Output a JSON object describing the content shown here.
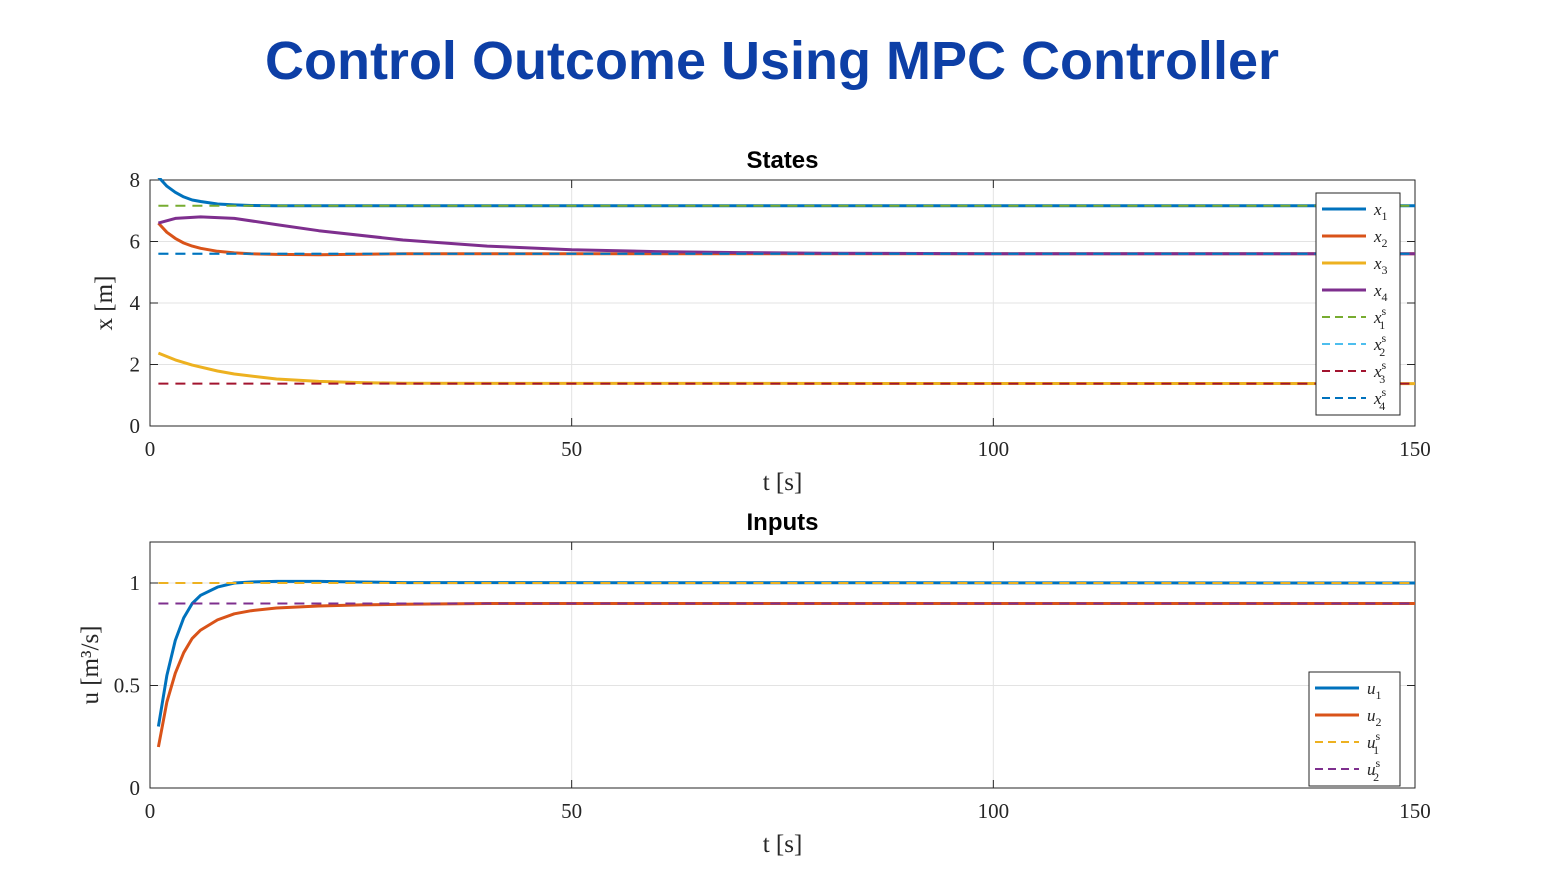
{
  "page": {
    "title": "Control Outcome Using MPC Controller"
  },
  "chart_data": [
    {
      "type": "line",
      "title": "States",
      "xlabel": "t [s]",
      "ylabel": "x [m]",
      "xlim": [
        0,
        150
      ],
      "ylim": [
        0,
        8
      ],
      "xticks": [
        "0",
        "50",
        "100",
        "150"
      ],
      "yticks": [
        "0",
        "2",
        "4",
        "6",
        "8"
      ],
      "grid": true,
      "legend_position": "top-right",
      "series": [
        {
          "name": "x",
          "sub": "1",
          "sup": "",
          "color": "#0072bd",
          "dash": false,
          "x": [
            1,
            2,
            3,
            4,
            5,
            6,
            8,
            10,
            12,
            15,
            20,
            150
          ],
          "values": [
            8.1,
            7.8,
            7.6,
            7.45,
            7.35,
            7.3,
            7.22,
            7.19,
            7.17,
            7.16,
            7.16,
            7.16
          ]
        },
        {
          "name": "x",
          "sub": "2",
          "sup": "",
          "color": "#d95319",
          "dash": false,
          "x": [
            1,
            2,
            3,
            4,
            5,
            6,
            8,
            10,
            12,
            15,
            20,
            30,
            150
          ],
          "values": [
            6.6,
            6.3,
            6.1,
            5.95,
            5.85,
            5.78,
            5.68,
            5.63,
            5.6,
            5.58,
            5.57,
            5.6,
            5.6
          ]
        },
        {
          "name": "x",
          "sub": "3",
          "sup": "",
          "color": "#edb120",
          "dash": false,
          "x": [
            1,
            3,
            5,
            8,
            10,
            15,
            20,
            25,
            30,
            150
          ],
          "values": [
            2.37,
            2.15,
            1.98,
            1.79,
            1.69,
            1.53,
            1.45,
            1.41,
            1.39,
            1.38
          ]
        },
        {
          "name": "x",
          "sub": "4",
          "sup": "",
          "color": "#7e2f8e",
          "dash": false,
          "x": [
            1,
            3,
            6,
            10,
            15,
            20,
            30,
            40,
            50,
            60,
            70,
            80,
            100,
            150
          ],
          "values": [
            6.6,
            6.75,
            6.8,
            6.75,
            6.55,
            6.35,
            6.05,
            5.85,
            5.73,
            5.67,
            5.64,
            5.62,
            5.6,
            5.6
          ]
        },
        {
          "name": "x",
          "sub": "1",
          "sup": "s",
          "color": "#77ac30",
          "dash": true,
          "x": [
            1,
            150
          ],
          "values": [
            7.16,
            7.16
          ]
        },
        {
          "name": "x",
          "sub": "2",
          "sup": "s",
          "color": "#4dbeee",
          "dash": true,
          "x": [
            1,
            150
          ],
          "values": [
            5.6,
            5.6
          ]
        },
        {
          "name": "x",
          "sub": "3",
          "sup": "s",
          "color": "#a2142f",
          "dash": true,
          "x": [
            1,
            150
          ],
          "values": [
            1.38,
            1.38
          ]
        },
        {
          "name": "x",
          "sub": "4",
          "sup": "s",
          "color": "#0072bd",
          "dash": true,
          "x": [
            1,
            150
          ],
          "values": [
            5.6,
            5.6
          ]
        }
      ]
    },
    {
      "type": "line",
      "title": "Inputs",
      "xlabel": "t [s]",
      "ylabel": "u [m³/s]",
      "xlim": [
        0,
        150
      ],
      "ylim": [
        0,
        1.2
      ],
      "xticks": [
        "0",
        "50",
        "100",
        "150"
      ],
      "yticks": [
        "0",
        "0.5",
        "1"
      ],
      "grid": true,
      "legend_position": "bottom-right",
      "series": [
        {
          "name": "u",
          "sub": "1",
          "sup": "",
          "color": "#0072bd",
          "dash": false,
          "x": [
            1,
            2,
            3,
            4,
            5,
            6,
            8,
            10,
            12,
            15,
            20,
            25,
            30,
            150
          ],
          "values": [
            0.3,
            0.55,
            0.72,
            0.83,
            0.9,
            0.94,
            0.98,
            1.0,
            1.005,
            1.008,
            1.008,
            1.005,
            1.002,
            1.0
          ]
        },
        {
          "name": "u",
          "sub": "2",
          "sup": "",
          "color": "#d95319",
          "dash": false,
          "x": [
            1,
            2,
            3,
            4,
            5,
            6,
            8,
            10,
            12,
            15,
            20,
            25,
            30,
            40,
            150
          ],
          "values": [
            0.2,
            0.42,
            0.56,
            0.66,
            0.73,
            0.77,
            0.82,
            0.85,
            0.865,
            0.878,
            0.888,
            0.893,
            0.896,
            0.9,
            0.9
          ]
        },
        {
          "name": "u",
          "sub": "1",
          "sup": "s",
          "color": "#edb120",
          "dash": true,
          "x": [
            1,
            150
          ],
          "values": [
            1.0,
            1.0
          ]
        },
        {
          "name": "u",
          "sub": "2",
          "sup": "s",
          "color": "#7e2f8e",
          "dash": true,
          "x": [
            1,
            150
          ],
          "values": [
            0.9,
            0.9
          ]
        }
      ]
    }
  ]
}
